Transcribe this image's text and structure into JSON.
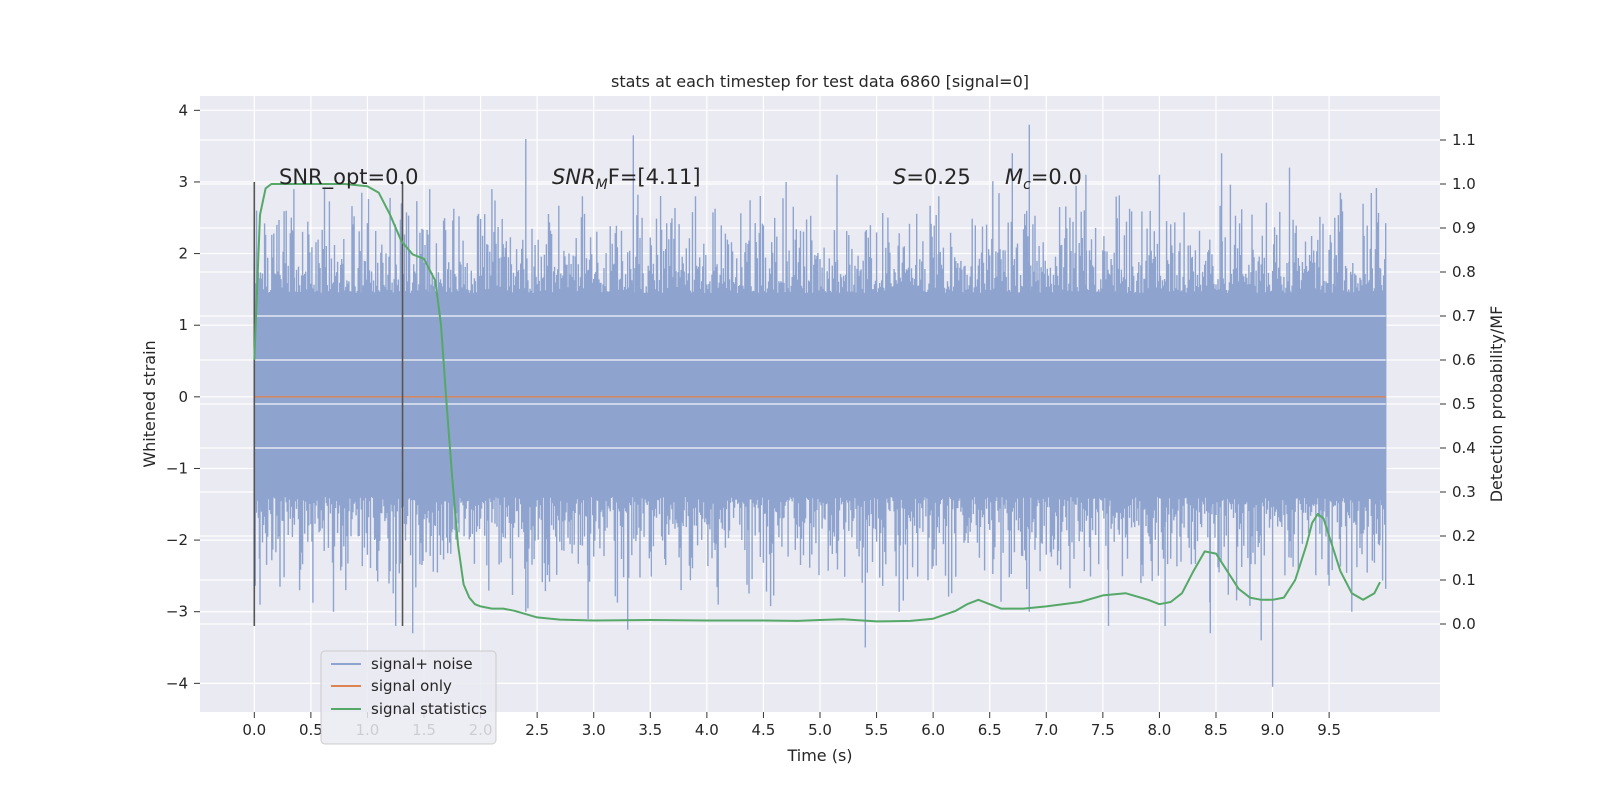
{
  "chart_data": {
    "type": "line",
    "title": "stats at each timestep for test data 6860 [signal=0]",
    "xlabel": "Time (s)",
    "ylabel": "Whitened strain",
    "y2label": "Detection probability/MF",
    "xlim": [
      -0.48,
      10.48
    ],
    "ylim": [
      -4.4,
      4.2
    ],
    "y2lim": [
      -0.2,
      1.2
    ],
    "x_ticks": [
      "0.0",
      "0.5",
      "1.0",
      "1.5",
      "2.0",
      "2.5",
      "3.0",
      "3.5",
      "4.0",
      "4.5",
      "5.0",
      "5.5",
      "6.0",
      "6.5",
      "7.0",
      "7.5",
      "8.0",
      "8.5",
      "9.0",
      "9.5"
    ],
    "y_ticks": [
      "4",
      "3",
      "2",
      "1",
      "0",
      "−1",
      "−2",
      "−3",
      "−4"
    ],
    "y2_ticks": [
      "1.1",
      "1.0",
      "0.9",
      "0.8",
      "0.7",
      "0.6",
      "0.5",
      "0.4",
      "0.3",
      "0.2",
      "0.1",
      "0.0"
    ],
    "grid": true,
    "colors": {
      "background": "#eaeaf2",
      "grid": "#ffffff",
      "noise": "#8ea4cf",
      "signal_only": "#dd8452",
      "statistics": "#55a868",
      "window_lines": "#555555"
    },
    "annotations": {
      "snr_opt": "SNR_opt=0.0",
      "snr_mf_prefix": "SNR",
      "snr_mf_sub": "M",
      "snr_mf_suffix": "F=[4.11]",
      "s_sym": "S",
      "s_value": "=0.25",
      "mc_sym": "M",
      "mc_sub": "c",
      "mc_value": "=0.0"
    },
    "legend": {
      "position": "lower-left",
      "entries": [
        "signal+ noise",
        "signal only",
        "signal statistics"
      ]
    },
    "series": [
      {
        "name": "signal+ noise",
        "axis": "left",
        "x_range": [
          0.0,
          10.0
        ],
        "band": [
          -1.1,
          1.15
        ],
        "peaks_up": [
          [
            0.02,
            2.6
          ],
          [
            0.2,
            2.4
          ],
          [
            0.35,
            2.9
          ],
          [
            0.62,
            2.9
          ],
          [
            0.95,
            2.85
          ],
          [
            1.3,
            2.7
          ],
          [
            1.55,
            2.9
          ],
          [
            2.1,
            2.9
          ],
          [
            2.4,
            3.6
          ],
          [
            2.9,
            2.8
          ],
          [
            3.35,
            3.65
          ],
          [
            3.9,
            2.8
          ],
          [
            4.7,
            3.0
          ],
          [
            5.15,
            3.1
          ],
          [
            6.05,
            2.8
          ],
          [
            6.7,
            3.4
          ],
          [
            6.85,
            3.8
          ],
          [
            7.35,
            3.1
          ],
          [
            8.0,
            3.1
          ],
          [
            8.55,
            3.4
          ],
          [
            9.15,
            3.2
          ],
          [
            9.55,
            2.5
          ],
          [
            9.95,
            1.8
          ]
        ],
        "peaks_down": [
          [
            0.05,
            -2.9
          ],
          [
            0.4,
            -2.7
          ],
          [
            0.7,
            -3.0
          ],
          [
            1.25,
            -3.2
          ],
          [
            1.4,
            -3.3
          ],
          [
            2.4,
            -3.0
          ],
          [
            2.95,
            -3.1
          ],
          [
            3.3,
            -3.25
          ],
          [
            4.1,
            -2.9
          ],
          [
            5.4,
            -3.5
          ],
          [
            5.7,
            -3.0
          ],
          [
            6.85,
            -3.0
          ],
          [
            7.55,
            -3.2
          ],
          [
            8.05,
            -3.2
          ],
          [
            8.45,
            -3.3
          ],
          [
            8.9,
            -3.4
          ],
          [
            9.0,
            -4.05
          ],
          [
            9.7,
            -3.0
          ],
          [
            9.95,
            -2.0
          ]
        ]
      },
      {
        "name": "signal only",
        "axis": "left",
        "x": [
          0.0,
          10.0
        ],
        "y": [
          0.0,
          0.0
        ]
      },
      {
        "name": "signal statistics",
        "axis": "right",
        "x": [
          0.0,
          0.05,
          0.1,
          0.15,
          0.25,
          0.4,
          0.6,
          0.8,
          1.0,
          1.1,
          1.2,
          1.3,
          1.4,
          1.5,
          1.6,
          1.65,
          1.7,
          1.75,
          1.8,
          1.85,
          1.9,
          1.95,
          2.0,
          2.1,
          2.2,
          2.3,
          2.5,
          2.7,
          3.0,
          3.5,
          4.0,
          4.5,
          4.8,
          5.0,
          5.2,
          5.5,
          5.8,
          6.0,
          6.2,
          6.3,
          6.4,
          6.5,
          6.6,
          6.8,
          7.0,
          7.3,
          7.5,
          7.7,
          7.9,
          8.0,
          8.1,
          8.2,
          8.3,
          8.4,
          8.5,
          8.6,
          8.7,
          8.8,
          8.9,
          9.0,
          9.1,
          9.2,
          9.3,
          9.35,
          9.4,
          9.45,
          9.5,
          9.6,
          9.7,
          9.8,
          9.9,
          9.95
        ],
        "y": [
          0.6,
          0.93,
          0.99,
          1.0,
          1.0,
          1.0,
          1.0,
          1.0,
          0.995,
          0.98,
          0.93,
          0.87,
          0.84,
          0.83,
          0.78,
          0.68,
          0.5,
          0.33,
          0.18,
          0.09,
          0.06,
          0.045,
          0.04,
          0.035,
          0.035,
          0.03,
          0.015,
          0.01,
          0.008,
          0.009,
          0.008,
          0.008,
          0.007,
          0.009,
          0.011,
          0.006,
          0.007,
          0.012,
          0.03,
          0.045,
          0.055,
          0.045,
          0.035,
          0.035,
          0.04,
          0.05,
          0.065,
          0.07,
          0.055,
          0.045,
          0.05,
          0.07,
          0.12,
          0.165,
          0.16,
          0.12,
          0.08,
          0.06,
          0.055,
          0.055,
          0.06,
          0.1,
          0.18,
          0.23,
          0.25,
          0.24,
          0.2,
          0.12,
          0.07,
          0.055,
          0.07,
          0.095
        ]
      }
    ],
    "vertical_lines": [
      {
        "x": 0.0,
        "y": [
          -3.2,
          3.0
        ]
      },
      {
        "x": 1.31,
        "y": [
          -3.2,
          3.0
        ]
      }
    ]
  }
}
